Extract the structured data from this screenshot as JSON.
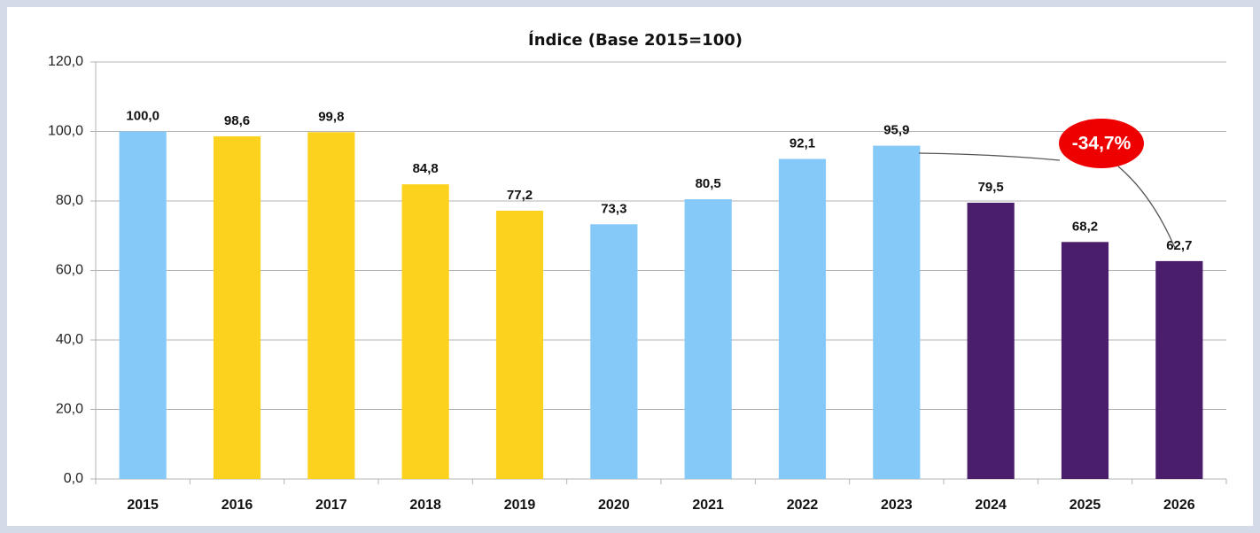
{
  "chart_data": {
    "type": "bar",
    "title": "Índice (Base 2015=100)",
    "categories": [
      "2015",
      "2016",
      "2017",
      "2018",
      "2019",
      "2020",
      "2021",
      "2022",
      "2023",
      "2024",
      "2025",
      "2026"
    ],
    "values": [
      100.0,
      98.6,
      99.8,
      84.8,
      77.2,
      73.3,
      80.5,
      92.1,
      95.9,
      79.5,
      68.2,
      62.7
    ],
    "value_labels": [
      "100,0",
      "98,6",
      "99,8",
      "84,8",
      "77,2",
      "73,3",
      "80,5",
      "92,1",
      "95,9",
      "79,5",
      "68,2",
      "62,7"
    ],
    "colors": [
      "#85c9f8",
      "#fdd21f",
      "#fdd21f",
      "#fdd21f",
      "#fdd21f",
      "#85c9f8",
      "#85c9f8",
      "#85c9f8",
      "#85c9f8",
      "#4a1e6b",
      "#4a1e6b",
      "#4a1e6b"
    ],
    "ylim": [
      0,
      120
    ],
    "yticks": [
      {
        "value": 0,
        "label": "0,0"
      },
      {
        "value": 20,
        "label": "20,0"
      },
      {
        "value": 40,
        "label": "40,0"
      },
      {
        "value": 60,
        "label": "60,0"
      },
      {
        "value": 80,
        "label": "80,0"
      },
      {
        "value": 100,
        "label": "100,0"
      },
      {
        "value": 120,
        "label": "120,0"
      }
    ],
    "grid": true,
    "annotation": "-34,7%"
  }
}
